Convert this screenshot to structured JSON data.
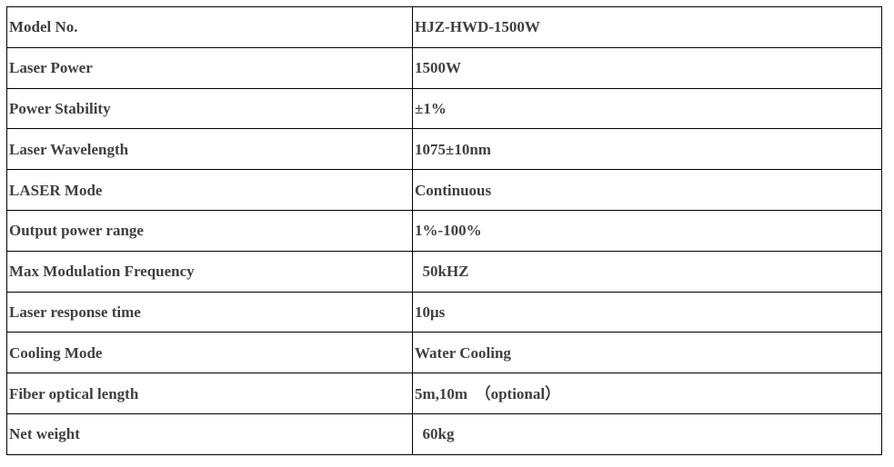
{
  "spec_table": {
    "rows": [
      {
        "label": "Model No.",
        "value": "HJZ-HWD-1500W"
      },
      {
        "label": "Laser Power",
        "value": "1500W"
      },
      {
        "label": "Power Stability",
        "value": "±1%"
      },
      {
        "label": "Laser Wavelength",
        "value": "1075±10nm"
      },
      {
        "label": "LASER Mode",
        "value": "Continuous"
      },
      {
        "label": "Output power range",
        "value": "1%-100%"
      },
      {
        "label": "Max Modulation Frequency",
        "value": "  50kHZ"
      },
      {
        "label": "Laser response time",
        "value": "10μs"
      },
      {
        "label": "Cooling Mode",
        "value": "Water Cooling"
      },
      {
        "label": "Fiber optical length",
        "value": "5m,10m　（optional）"
      },
      {
        "label": "Net weight",
        "value": "  60kg"
      }
    ]
  }
}
